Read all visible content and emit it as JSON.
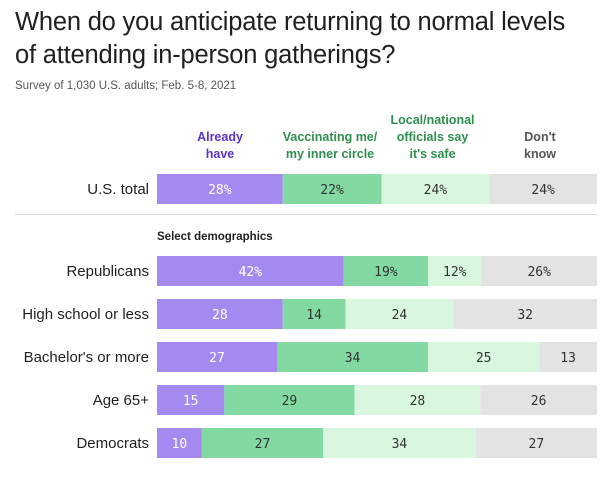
{
  "title": "When do you anticipate returning to normal levels of attending in-person gatherings?",
  "subtitle": "Survey of 1,030 U.S. adults; Feb. 5-8, 2021",
  "section_label": "Select demographics",
  "colors": {
    "already": "#a48af0",
    "vaccinating": "#82d9a2",
    "officials": "#d9f7de",
    "dont_know": "#e3e3e3",
    "already_text": "#5a34c8",
    "vaccinating_text": "#2f8f4e",
    "officials_text": "#2f8f4e",
    "dont_know_text": "#555555"
  },
  "columns": [
    {
      "label_line1": "Already",
      "label_line2": "have"
    },
    {
      "label_line1": "Vaccinating me/",
      "label_line2": "my inner circle"
    },
    {
      "label_line1": "Local/national",
      "label_line2": "officials say",
      "label_line3": "it's safe"
    },
    {
      "label_line1": "Don't",
      "label_line2": "know"
    }
  ],
  "chart_data": {
    "type": "bar",
    "orientation": "horizontal-stacked-100",
    "title": "When do you anticipate returning to normal levels of attending in-person gatherings?",
    "subtitle": "Survey of 1,030 U.S. adults; Feb. 5-8, 2021",
    "categories": [
      "U.S. total",
      "Republicans",
      "High school or less",
      "Bachelor's or more",
      "Age 65+",
      "Democrats"
    ],
    "series": [
      {
        "name": "Already have",
        "values": [
          28,
          42,
          28,
          27,
          15,
          10
        ]
      },
      {
        "name": "Vaccinating me/my inner circle",
        "values": [
          22,
          19,
          14,
          34,
          29,
          27
        ]
      },
      {
        "name": "Local/national officials say it's safe",
        "values": [
          24,
          12,
          24,
          25,
          28,
          34
        ]
      },
      {
        "name": "Don't know",
        "values": [
          24,
          26,
          32,
          13,
          26,
          27
        ]
      }
    ],
    "value_labels": [
      [
        "28%",
        "22%",
        "24%",
        "24%"
      ],
      [
        "42%",
        "19%",
        "12%",
        "26%"
      ],
      [
        "28",
        "14",
        "24",
        "32"
      ],
      [
        "27",
        "34",
        "25",
        "13"
      ],
      [
        "15",
        "29",
        "28",
        "26"
      ],
      [
        "10",
        "27",
        "34",
        "27"
      ]
    ],
    "xlim": [
      0,
      100
    ],
    "legend": "top"
  }
}
